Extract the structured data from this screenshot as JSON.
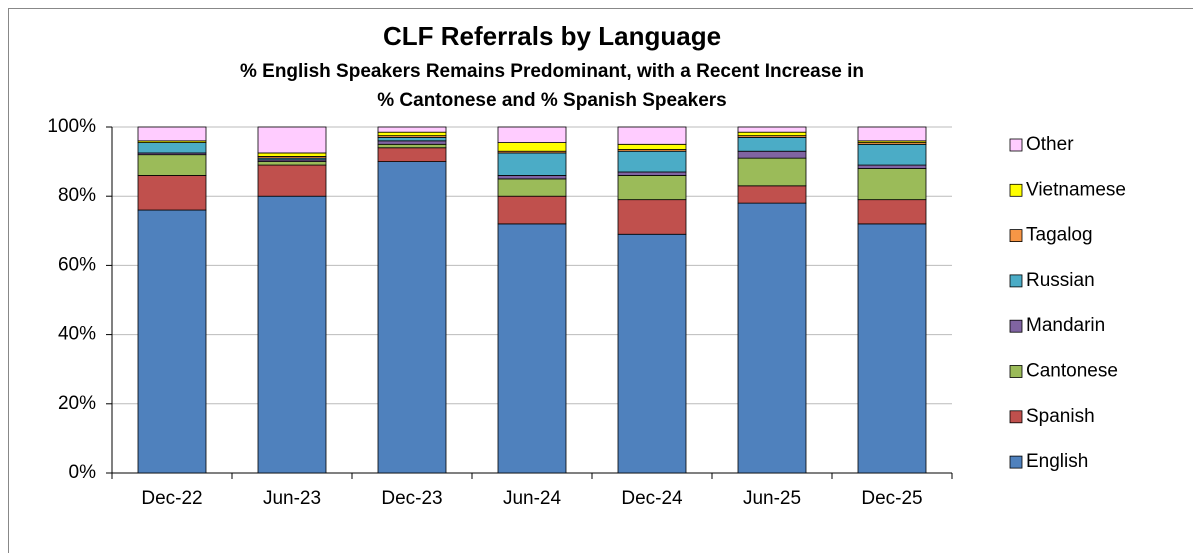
{
  "chart_data": {
    "type": "stacked_bar",
    "title": "CLF Referrals by Language",
    "subtitle": [
      "% English Speakers Remains Predominant, with a Recent Increase in",
      "% Cantonese and % Spanish Speakers"
    ],
    "categories": [
      "Dec-22",
      "Jun-23",
      "Dec-23",
      "Jun-24",
      "Dec-24",
      "Jun-25",
      "Dec-25"
    ],
    "series": [
      {
        "name": "English",
        "color": "#4f81bd",
        "values": [
          76,
          80,
          90,
          72,
          69,
          78,
          72
        ]
      },
      {
        "name": "Spanish",
        "color": "#c0504d",
        "values": [
          10,
          9,
          4,
          8,
          10,
          5,
          7
        ]
      },
      {
        "name": "Cantonese",
        "color": "#9bbb59",
        "values": [
          6,
          1,
          1,
          5,
          7,
          8,
          9
        ]
      },
      {
        "name": "Mandarin",
        "color": "#8064a2",
        "values": [
          0.5,
          0.5,
          1,
          1,
          1,
          2,
          1
        ]
      },
      {
        "name": "Russian",
        "color": "#4bacc6",
        "values": [
          3,
          0.5,
          1,
          6.5,
          6,
          4,
          6
        ]
      },
      {
        "name": "Tagalog",
        "color": "#f79646",
        "values": [
          0,
          0.5,
          0.5,
          0.5,
          0.5,
          0.5,
          0.5
        ]
      },
      {
        "name": "Vietnamese",
        "color": "#ffff00",
        "values": [
          0.5,
          1,
          1,
          2.5,
          1.5,
          1,
          0.5
        ]
      },
      {
        "name": "Other",
        "color": "#ffccff",
        "values": [
          4,
          7.5,
          1.5,
          4.5,
          5,
          1.5,
          4
        ]
      }
    ],
    "ylim": [
      0,
      100
    ],
    "yticks": [
      {
        "value": 0,
        "label": "0%"
      },
      {
        "value": 20,
        "label": "20%"
      },
      {
        "value": 40,
        "label": "40%"
      },
      {
        "value": 60,
        "label": "60%"
      },
      {
        "value": 80,
        "label": "80%"
      },
      {
        "value": 100,
        "label": "100%"
      }
    ],
    "grid": true,
    "legend": "right"
  }
}
